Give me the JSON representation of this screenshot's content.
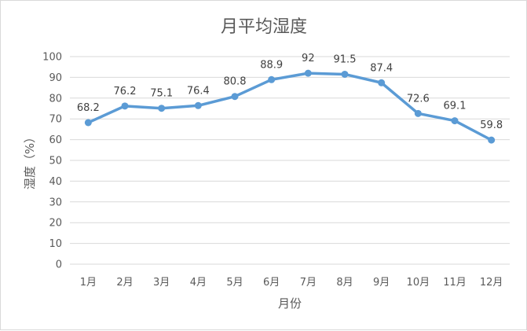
{
  "chart_data": {
    "type": "line",
    "title": "月平均湿度",
    "xlabel": "月份",
    "ylabel": "湿度（%）",
    "categories": [
      "1月",
      "2月",
      "3月",
      "4月",
      "5月",
      "6月",
      "7月",
      "8月",
      "9月",
      "10月",
      "11月",
      "12月"
    ],
    "series": [
      {
        "values": [
          68.2,
          76.2,
          75.1,
          76.4,
          80.8,
          88.9,
          92,
          91.5,
          87.4,
          72.6,
          69.1,
          59.8
        ],
        "labels": [
          "68.2",
          "76.2",
          "75.1",
          "76.4",
          "80.8",
          "88.9",
          "92",
          "91.5",
          "87.4",
          "72.6",
          "69.1",
          "59.8"
        ],
        "color": "#5b9bd5"
      }
    ],
    "ylim": [
      0,
      100
    ],
    "yticks": [
      0,
      10,
      20,
      30,
      40,
      50,
      60,
      70,
      80,
      90,
      100
    ],
    "ytick_labels": [
      "0",
      "10",
      "20",
      "30",
      "40",
      "50",
      "60",
      "70",
      "80",
      "90",
      "100"
    ],
    "grid": true,
    "legend": "none",
    "gridline_color": "#d9d9d9"
  }
}
